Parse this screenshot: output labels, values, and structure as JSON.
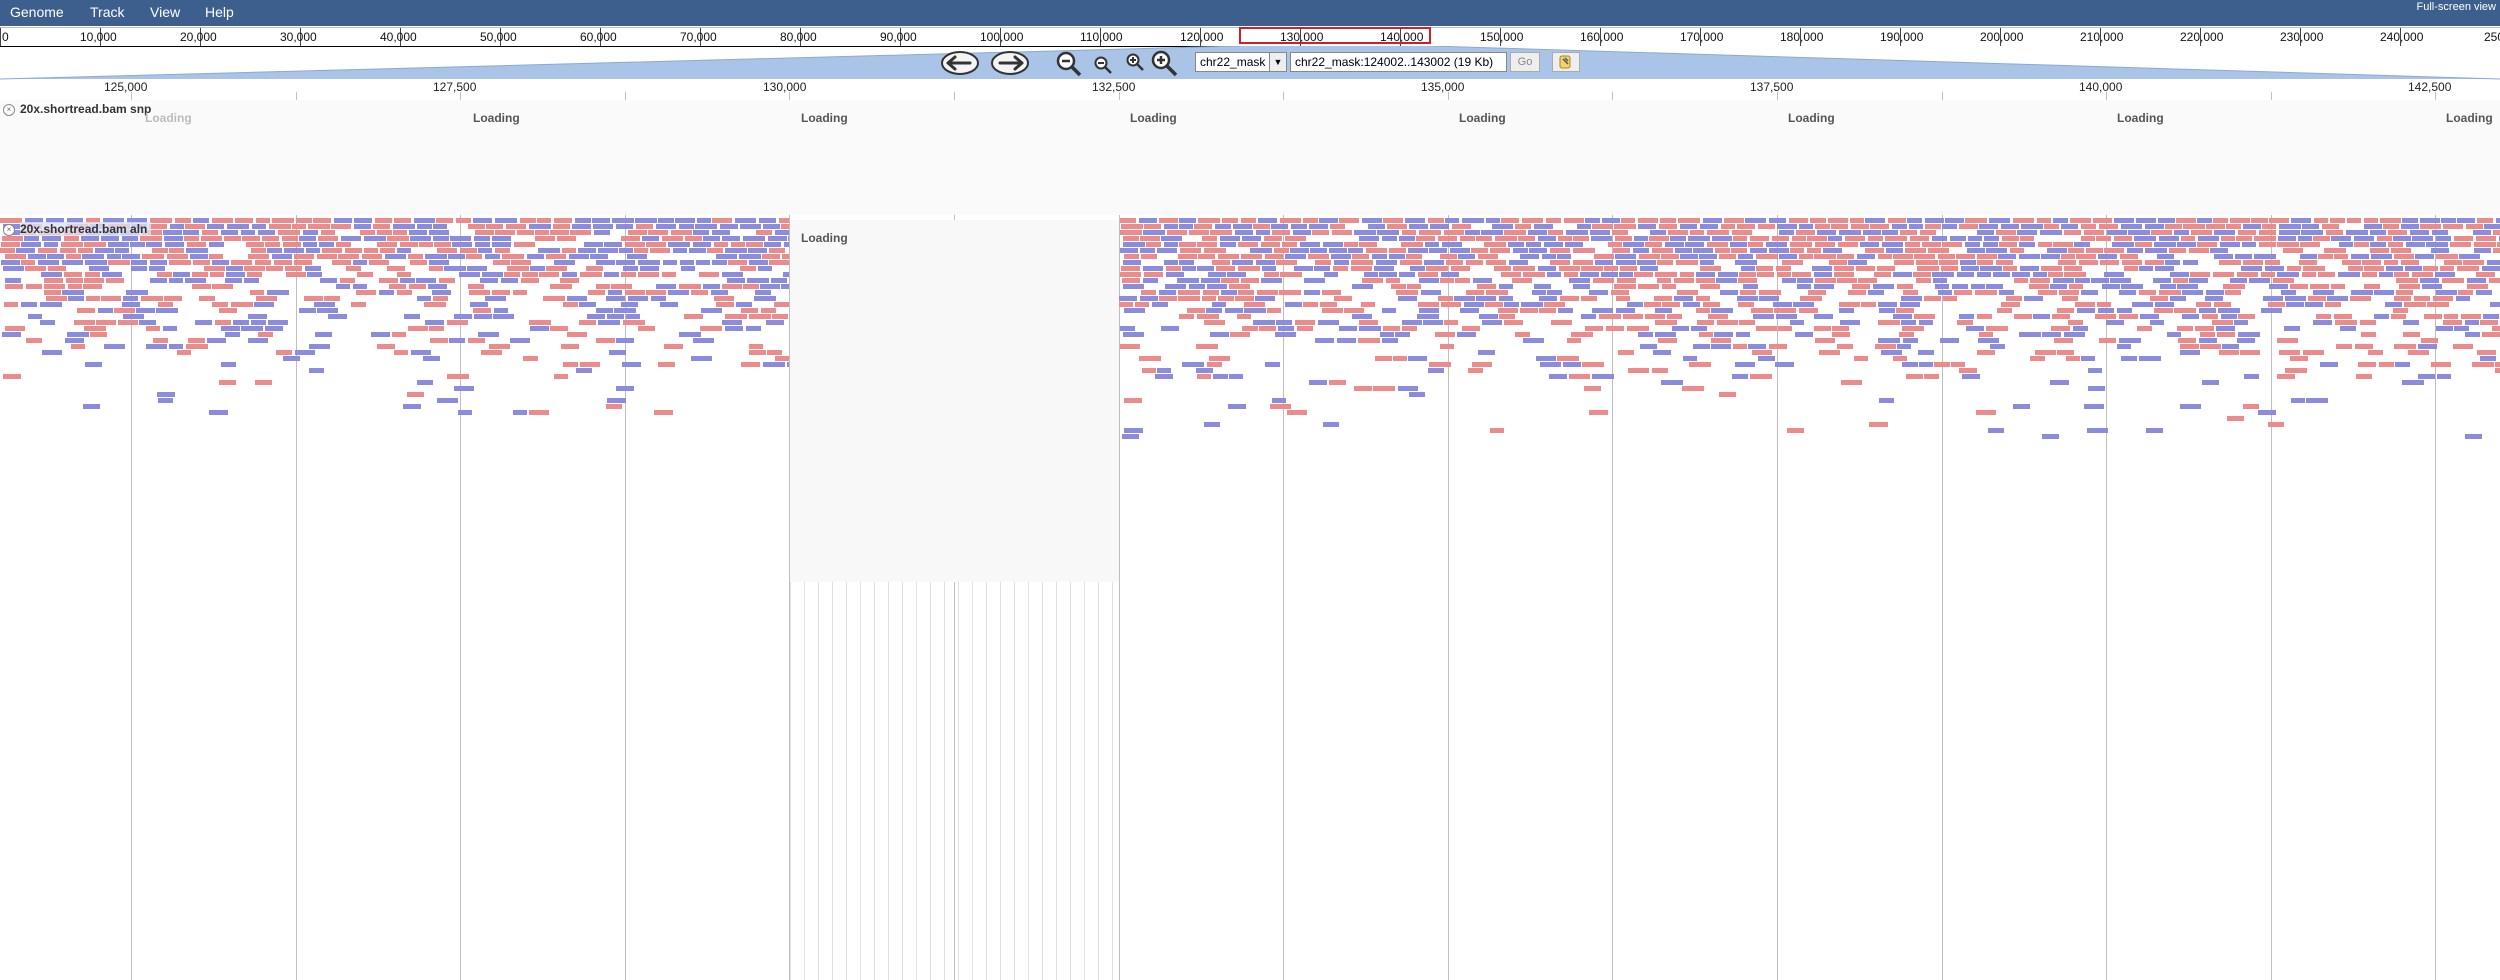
{
  "menu": {
    "items": [
      "Genome",
      "Track",
      "View",
      "Help"
    ],
    "fullscreen": "Full-screen view"
  },
  "overview": {
    "labels": [
      "0",
      "10,000",
      "20,000",
      "30,000",
      "40,000",
      "50,000",
      "60,000",
      "70,000",
      "80,000",
      "90,000",
      "100,000",
      "110,000",
      "120,000",
      "130,000",
      "140,000",
      "150,000",
      "160,000",
      "170,000",
      "180,000",
      "190,000",
      "200,000",
      "210,000",
      "220,000",
      "230,000",
      "240,000",
      "250"
    ]
  },
  "nav": {
    "ref_seq": "chr22_mask",
    "location": "chr22_mask:124002..143002 (19 Kb)",
    "go": "Go"
  },
  "ruler": {
    "labels": [
      "125,000",
      "127,500",
      "130,000",
      "132,500",
      "135,000",
      "137,500",
      "140,000",
      "142,500"
    ]
  },
  "tracks": {
    "snp": {
      "label": "20x.shortread.bam snp"
    },
    "aln": {
      "label": "20x.shortread.bam aln"
    },
    "loading_text": "Loading"
  },
  "colors": {
    "menubar": "#3d5f8e",
    "read_forward": "#ec8b8b",
    "read_reverse": "#8c8cde",
    "viewport_box": "#d21f26",
    "trapezoid": "#a9c4e6"
  }
}
